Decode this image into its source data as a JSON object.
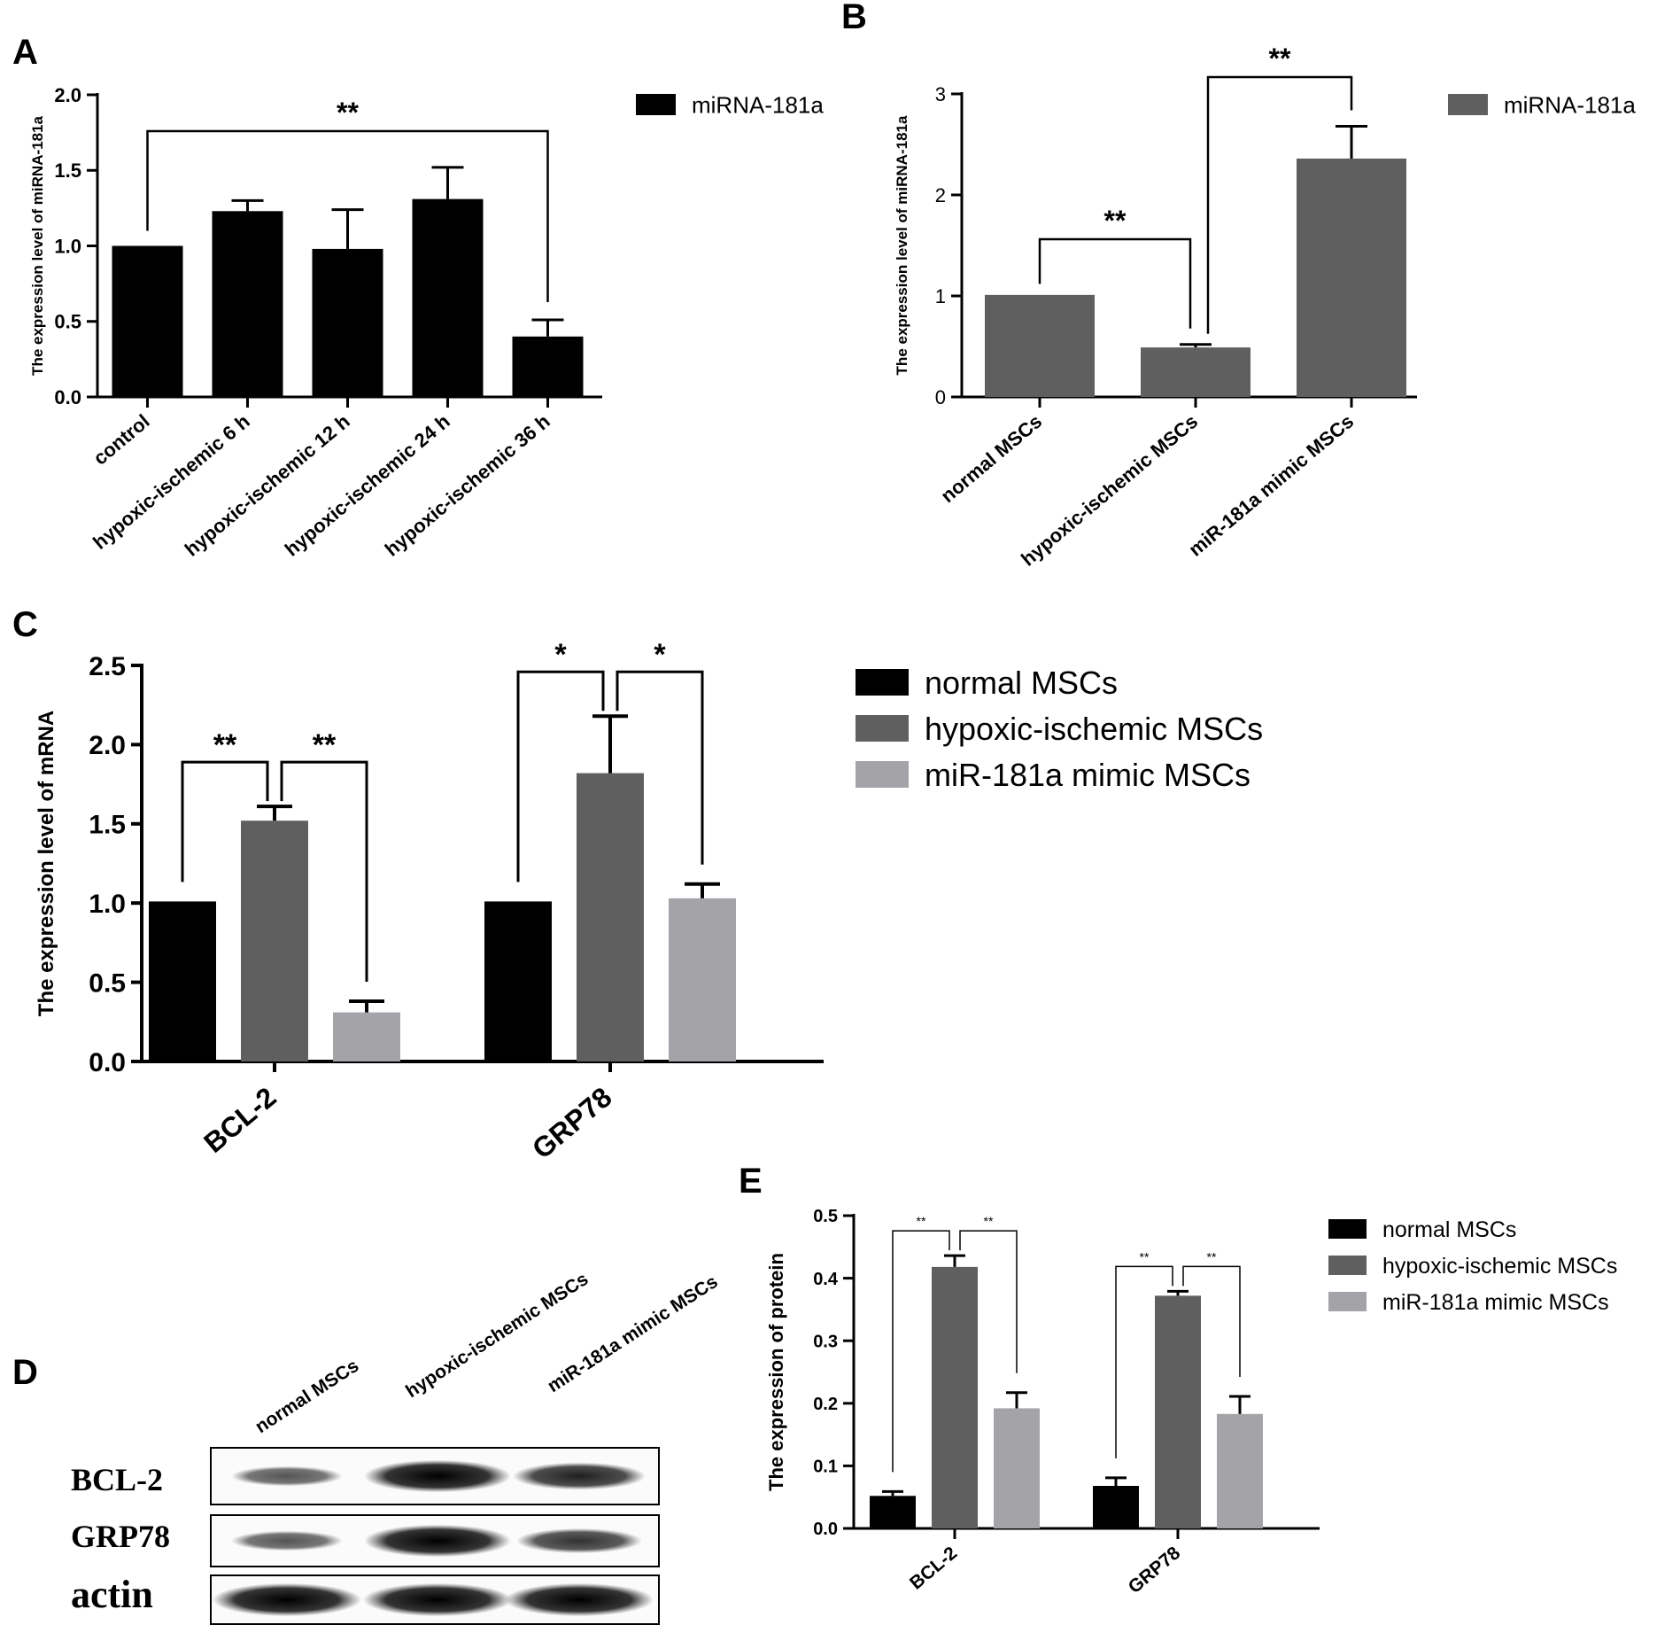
{
  "colors": {
    "black": "#000000",
    "dark_gray": "#5f5f5f",
    "light_gray": "#a4a4a8"
  },
  "chart_data": [
    {
      "panel": "A",
      "type": "bar",
      "ylabel": "The expression level of miRNA-181a",
      "yticks": [
        "0.0",
        "0.5",
        "1.0",
        "1.5",
        "2.0"
      ],
      "ylim": [
        0,
        2.0
      ],
      "categories": [
        "control",
        "hypoxic-ischemic 6 h",
        "hypoxic-ischemic 12 h",
        "hypoxic-ischemic 24 h",
        "hypoxic-ischemic 36 h"
      ],
      "series": [
        {
          "name": "miRNA-181a",
          "color": "#000000",
          "values": [
            1.0,
            1.23,
            0.98,
            1.31,
            0.4
          ],
          "errors": [
            0,
            0.07,
            0.26,
            0.21,
            0.11
          ]
        }
      ],
      "annotations": [
        {
          "from": 0,
          "to": 4,
          "label": "**"
        }
      ],
      "legend": "top-right"
    },
    {
      "panel": "B",
      "type": "bar",
      "ylabel": "The expression level of miRNA-181a",
      "yticks": [
        "0",
        "1",
        "2",
        "3"
      ],
      "ylim": [
        0,
        3
      ],
      "categories": [
        "normal MSCs",
        "hypoxic-ischemic MSCs",
        "miR-181a mimic MSCs"
      ],
      "series": [
        {
          "name": "miRNA-181a",
          "color": "#5f5f5f",
          "values": [
            1.01,
            0.49,
            2.36
          ],
          "errors": [
            0,
            0.03,
            0.32
          ]
        }
      ],
      "annotations": [
        {
          "from": 0,
          "to": 1,
          "label": "**"
        },
        {
          "from": 1,
          "to": 2,
          "label": "**"
        }
      ],
      "legend": "top-right"
    },
    {
      "panel": "C",
      "type": "bar",
      "ylabel": "The expression level of mRNA",
      "yticks": [
        "0.0",
        "0.5",
        "1.0",
        "1.5",
        "2.0",
        "2.5"
      ],
      "ylim": [
        0,
        2.5
      ],
      "categories": [
        "BCL-2",
        "GRP78"
      ],
      "series": [
        {
          "name": "normal MSCs",
          "color": "#000000",
          "values": [
            1.01,
            1.01
          ],
          "errors": [
            0,
            0
          ]
        },
        {
          "name": "hypoxic-ischemic MSCs",
          "color": "#5f5f5f",
          "values": [
            1.52,
            1.82
          ],
          "errors": [
            0.09,
            0.36
          ]
        },
        {
          "name": "miR-181a mimic MSCs",
          "color": "#a4a4a8",
          "values": [
            0.31,
            1.03
          ],
          "errors": [
            0.07,
            0.09
          ]
        }
      ],
      "annotations": [
        {
          "category": 0,
          "from": 0,
          "to": 1,
          "label": "**"
        },
        {
          "category": 0,
          "from": 1,
          "to": 2,
          "label": "**"
        },
        {
          "category": 1,
          "from": 0,
          "to": 1,
          "label": "*"
        },
        {
          "category": 1,
          "from": 1,
          "to": 2,
          "label": "*"
        }
      ],
      "legend": "right"
    },
    {
      "panel": "E",
      "type": "bar",
      "ylabel": "The expression of protein",
      "yticks": [
        "0.0",
        "0.1",
        "0.2",
        "0.3",
        "0.4",
        "0.5"
      ],
      "ylim": [
        0,
        0.5
      ],
      "categories": [
        "BCL-2",
        "GRP78"
      ],
      "series": [
        {
          "name": "normal MSCs",
          "color": "#000000",
          "values": [
            0.052,
            0.068
          ],
          "errors": [
            0.007,
            0.013
          ]
        },
        {
          "name": "hypoxic-ischemic MSCs",
          "color": "#5f5f5f",
          "values": [
            0.418,
            0.372
          ],
          "errors": [
            0.018,
            0.007
          ]
        },
        {
          "name": "miR-181a mimic MSCs",
          "color": "#a4a4a8",
          "values": [
            0.192,
            0.183
          ],
          "errors": [
            0.025,
            0.028
          ]
        }
      ],
      "annotations": [
        {
          "category": 0,
          "from": 0,
          "to": 1,
          "label": "**"
        },
        {
          "category": 0,
          "from": 1,
          "to": 2,
          "label": "**"
        },
        {
          "category": 1,
          "from": 0,
          "to": 1,
          "label": "**"
        },
        {
          "category": 1,
          "from": 1,
          "to": 2,
          "label": "**"
        }
      ],
      "legend": "right"
    }
  ],
  "panel_d": {
    "letter": "D",
    "lanes": [
      "normal MSCs",
      "hypoxic-ischemic MSCs",
      "miR-181a mimic MSCs"
    ],
    "rows": [
      {
        "label": "BCL-2",
        "intensity": [
          0.45,
          0.95,
          0.75
        ]
      },
      {
        "label": "GRP78",
        "intensity": [
          0.45,
          0.95,
          0.65
        ]
      },
      {
        "label": "actin",
        "intensity": [
          0.98,
          0.98,
          0.98
        ]
      }
    ]
  }
}
